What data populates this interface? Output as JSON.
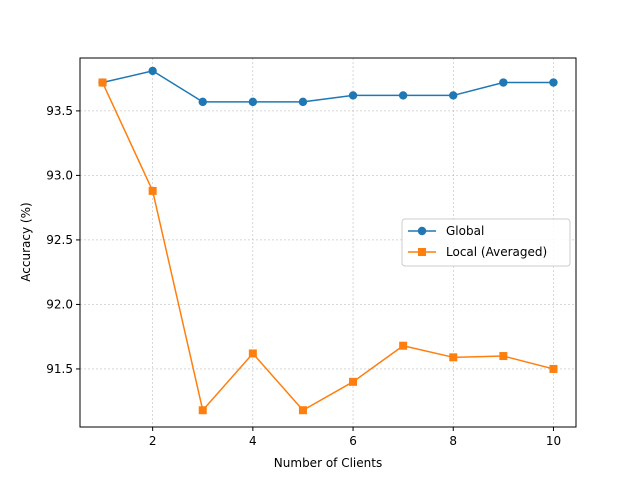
{
  "chart_data": {
    "type": "line",
    "title": "",
    "xlabel": "Number of Clients",
    "ylabel": "Accuracy (%)",
    "x": [
      1,
      2,
      3,
      4,
      5,
      6,
      7,
      8,
      9,
      10
    ],
    "xlim": [
      0.55,
      10.45
    ],
    "ylim": [
      91.05,
      93.91
    ],
    "xticks": [
      2,
      4,
      6,
      8,
      10
    ],
    "yticks": [
      91.5,
      92.0,
      92.5,
      93.0,
      93.5
    ],
    "xtick_labels": [
      "2",
      "4",
      "6",
      "8",
      "10"
    ],
    "ytick_labels": [
      "91.5",
      "92.0",
      "92.5",
      "93.0",
      "93.5"
    ],
    "grid": true,
    "legend_position": "center-right",
    "series": [
      {
        "name": "Global",
        "color": "#1f77b4",
        "marker": "circle",
        "values": [
          93.72,
          93.81,
          93.57,
          93.57,
          93.57,
          93.62,
          93.62,
          93.62,
          93.72,
          93.72
        ]
      },
      {
        "name": "Local (Averaged)",
        "color": "#ff7f0e",
        "marker": "square",
        "values": [
          93.72,
          92.88,
          91.18,
          91.62,
          91.18,
          91.4,
          91.68,
          91.59,
          91.6,
          91.5
        ]
      }
    ]
  }
}
